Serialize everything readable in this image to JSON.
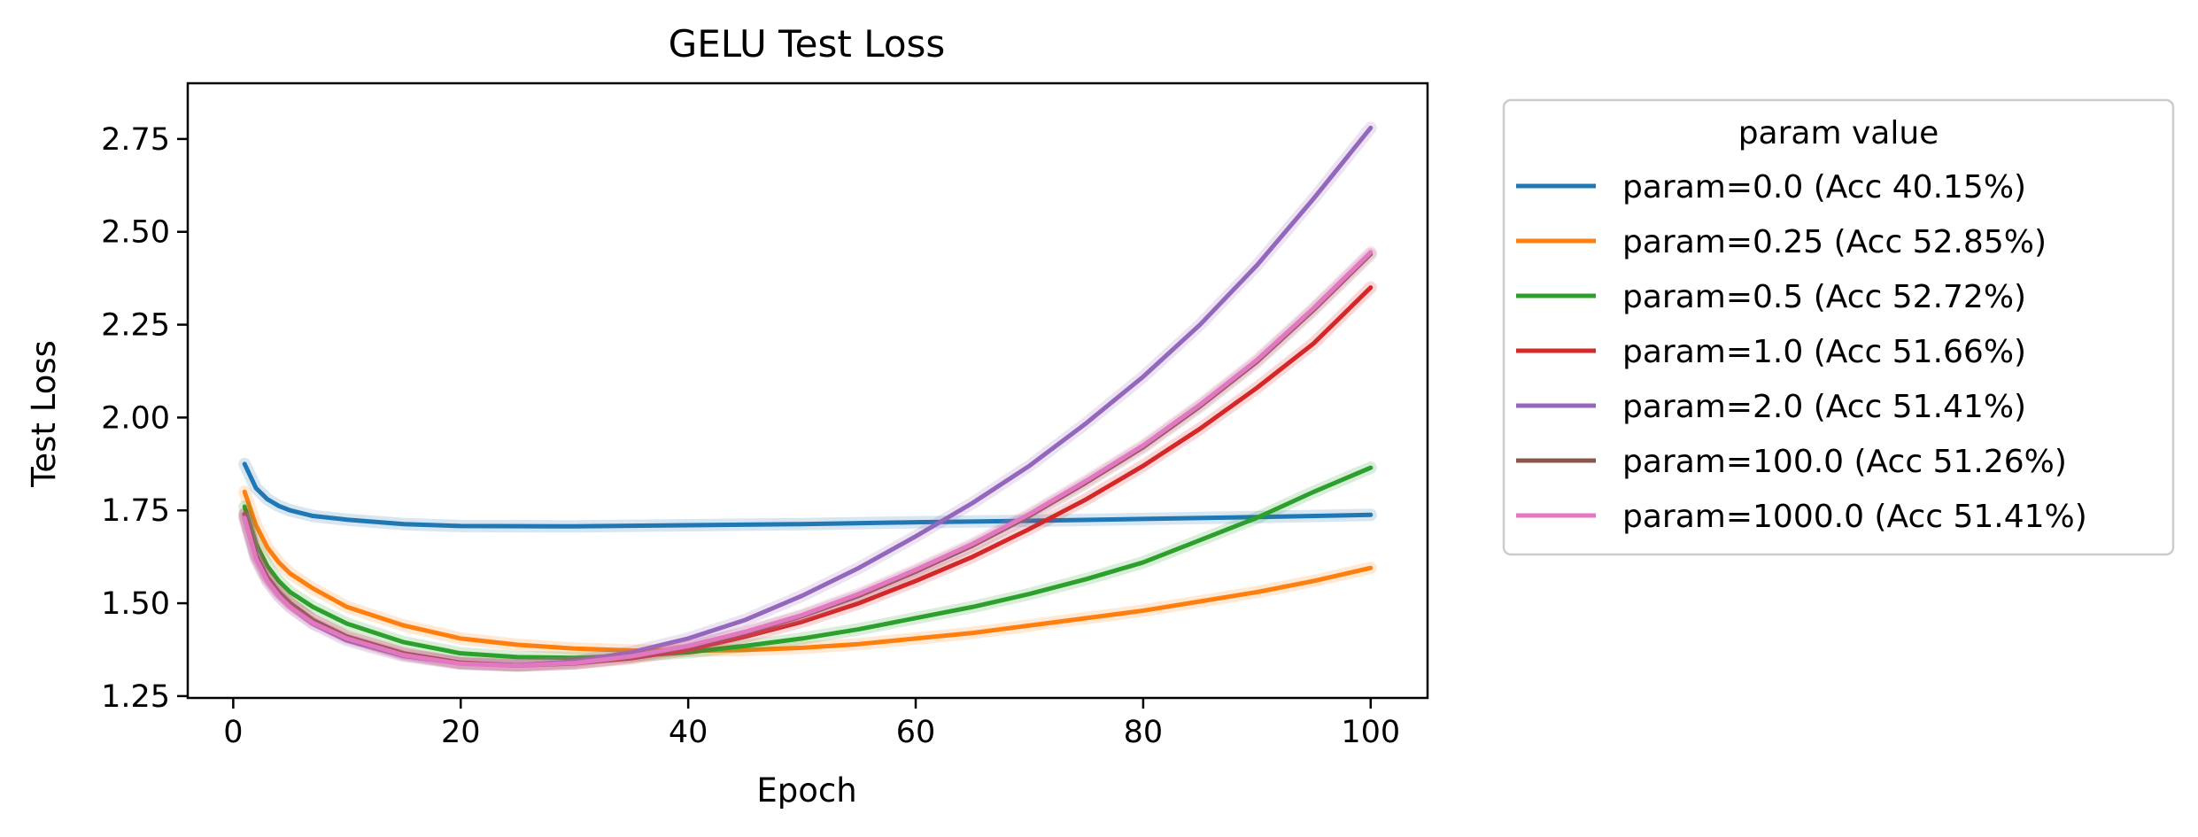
{
  "chart_data": {
    "type": "line",
    "title": "GELU Test Loss",
    "xlabel": "Epoch",
    "ylabel": "Test Loss",
    "xlim": [
      -4,
      105
    ],
    "ylim": [
      1.245,
      2.9
    ],
    "xticks": [
      0,
      20,
      40,
      60,
      80,
      100
    ],
    "yticks": [
      1.25,
      1.5,
      1.75,
      2.0,
      2.25,
      2.5,
      2.75
    ],
    "xtick_labels": [
      "0",
      "20",
      "40",
      "60",
      "80",
      "100"
    ],
    "ytick_labels": [
      "1.25",
      "1.50",
      "1.75",
      "2.00",
      "2.25",
      "2.50",
      "2.75"
    ],
    "grid": false,
    "legend": {
      "title": "param value",
      "placement": "outside-right"
    },
    "series": [
      {
        "name": "param=0.0 (Acc 40.15%)",
        "color": "#1f77b4",
        "x": [
          1,
          2,
          3,
          4,
          5,
          7,
          10,
          15,
          20,
          30,
          40,
          50,
          60,
          70,
          80,
          90,
          100
        ],
        "y": [
          1.875,
          1.81,
          1.78,
          1.762,
          1.75,
          1.735,
          1.725,
          1.713,
          1.708,
          1.707,
          1.71,
          1.713,
          1.718,
          1.722,
          1.727,
          1.732,
          1.738
        ]
      },
      {
        "name": "param=0.25 (Acc 52.85%)",
        "color": "#ff7f0e",
        "x": [
          1,
          2,
          3,
          4,
          5,
          7,
          10,
          15,
          20,
          25,
          30,
          35,
          40,
          45,
          50,
          55,
          60,
          65,
          70,
          75,
          80,
          85,
          90,
          95,
          100
        ],
        "y": [
          1.8,
          1.71,
          1.65,
          1.61,
          1.58,
          1.54,
          1.49,
          1.44,
          1.405,
          1.388,
          1.378,
          1.373,
          1.372,
          1.374,
          1.38,
          1.39,
          1.405,
          1.42,
          1.44,
          1.46,
          1.48,
          1.505,
          1.53,
          1.56,
          1.595
        ]
      },
      {
        "name": "param=0.5 (Acc 52.72%)",
        "color": "#2ca02c",
        "x": [
          1,
          2,
          3,
          4,
          5,
          7,
          10,
          15,
          20,
          25,
          30,
          35,
          40,
          45,
          50,
          55,
          60,
          65,
          70,
          75,
          80,
          85,
          90,
          95,
          100
        ],
        "y": [
          1.76,
          1.66,
          1.6,
          1.56,
          1.53,
          1.49,
          1.445,
          1.395,
          1.365,
          1.355,
          1.353,
          1.358,
          1.368,
          1.385,
          1.405,
          1.43,
          1.46,
          1.49,
          1.525,
          1.565,
          1.61,
          1.67,
          1.73,
          1.8,
          1.865
        ]
      },
      {
        "name": "param=1.0 (Acc 51.66%)",
        "color": "#d62728",
        "x": [
          1,
          2,
          3,
          4,
          5,
          7,
          10,
          15,
          20,
          25,
          30,
          35,
          40,
          45,
          50,
          55,
          60,
          65,
          70,
          75,
          80,
          85,
          90,
          95,
          100
        ],
        "y": [
          1.74,
          1.63,
          1.57,
          1.53,
          1.5,
          1.455,
          1.41,
          1.365,
          1.34,
          1.333,
          1.338,
          1.352,
          1.375,
          1.41,
          1.45,
          1.5,
          1.56,
          1.625,
          1.7,
          1.78,
          1.87,
          1.97,
          2.08,
          2.2,
          2.35
        ]
      },
      {
        "name": "param=2.0 (Acc 51.41%)",
        "color": "#9467bd",
        "x": [
          1,
          2,
          3,
          4,
          5,
          7,
          10,
          15,
          20,
          25,
          30,
          35,
          40,
          45,
          50,
          55,
          60,
          65,
          70,
          75,
          80,
          85,
          90,
          95,
          100
        ],
        "y": [
          1.73,
          1.62,
          1.56,
          1.52,
          1.49,
          1.445,
          1.4,
          1.358,
          1.338,
          1.333,
          1.343,
          1.368,
          1.405,
          1.455,
          1.52,
          1.595,
          1.68,
          1.77,
          1.87,
          1.985,
          2.11,
          2.25,
          2.41,
          2.59,
          2.78
        ]
      },
      {
        "name": "param=100.0 (Acc 51.26%)",
        "color": "#8c564b",
        "x": [
          1,
          2,
          3,
          4,
          5,
          7,
          10,
          15,
          20,
          25,
          30,
          35,
          40,
          45,
          50,
          55,
          60,
          65,
          70,
          75,
          80,
          85,
          90,
          95,
          100
        ],
        "y": [
          1.74,
          1.63,
          1.57,
          1.53,
          1.5,
          1.455,
          1.41,
          1.363,
          1.338,
          1.332,
          1.338,
          1.355,
          1.382,
          1.42,
          1.465,
          1.52,
          1.585,
          1.655,
          1.735,
          1.825,
          1.92,
          2.03,
          2.15,
          2.29,
          2.44
        ]
      },
      {
        "name": "param=1000.0 (Acc 51.41%)",
        "color": "#e377c2",
        "x": [
          1,
          2,
          3,
          4,
          5,
          7,
          10,
          15,
          20,
          25,
          30,
          35,
          40,
          45,
          50,
          55,
          60,
          65,
          70,
          75,
          80,
          85,
          90,
          95,
          100
        ],
        "y": [
          1.73,
          1.62,
          1.56,
          1.52,
          1.49,
          1.447,
          1.405,
          1.36,
          1.337,
          1.332,
          1.339,
          1.357,
          1.385,
          1.423,
          1.468,
          1.525,
          1.59,
          1.66,
          1.74,
          1.83,
          1.925,
          2.035,
          2.155,
          2.295,
          2.445
        ]
      }
    ]
  }
}
